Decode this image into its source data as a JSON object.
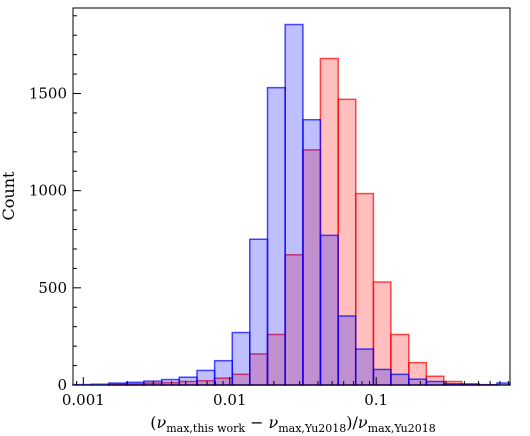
{
  "chart_data": {
    "type": "bar",
    "xlabel_parts": {
      "nu": "ν",
      "sub1": "max,this work",
      "minus": "−",
      "sub2": "max,Yu2018",
      "slash": "/",
      "sub3": "max,Yu2018"
    },
    "ylabel": "Count",
    "xscale": "log",
    "xlim": [
      0.00085,
      0.82
    ],
    "ylim": [
      0,
      1940
    ],
    "xticks": [
      {
        "value": 0.001,
        "label": "0.001"
      },
      {
        "value": 0.01,
        "label": "0.01"
      },
      {
        "value": 0.1,
        "label": "0.1"
      }
    ],
    "yticks": [
      {
        "value": 0,
        "label": "0"
      },
      {
        "value": 500,
        "label": "500"
      },
      {
        "value": 1000,
        "label": "1000"
      },
      {
        "value": 1500,
        "label": "1500"
      }
    ],
    "bin_edges": [
      0.00085,
      0.00113,
      0.00149,
      0.00197,
      0.00259,
      0.00343,
      0.00452,
      0.00597,
      0.00788,
      0.0104,
      0.0137,
      0.0181,
      0.0239,
      0.0316,
      0.0416,
      0.055,
      0.0725,
      0.0957,
      0.126,
      0.167,
      0.22,
      0.29,
      0.383,
      0.506,
      0.668,
      0.82
    ],
    "series": [
      {
        "color": "#ff0000",
        "values": [
          0,
          0,
          4,
          6,
          10,
          12,
          18,
          22,
          35,
          55,
          160,
          260,
          670,
          1210,
          1680,
          1470,
          985,
          530,
          260,
          115,
          45,
          18,
          6,
          2,
          0
        ]
      },
      {
        "color": "#0000ff",
        "values": [
          2,
          4,
          10,
          14,
          20,
          28,
          40,
          75,
          125,
          270,
          750,
          1530,
          1855,
          1365,
          770,
          355,
          185,
          80,
          55,
          30,
          18,
          6,
          3,
          1,
          10
        ]
      }
    ]
  }
}
